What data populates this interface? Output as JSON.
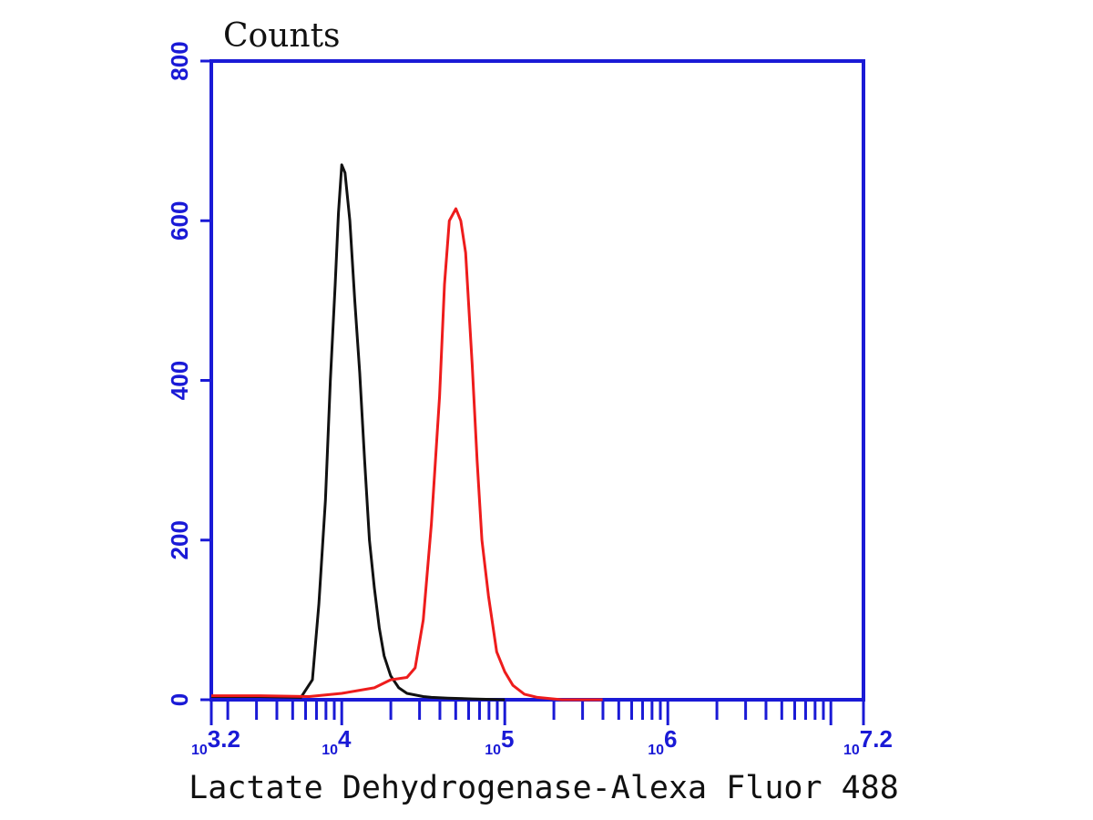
{
  "chart_data": {
    "type": "line",
    "title": "",
    "xlabel": "Lactate Dehydrogenase-Alexa Fluor 488",
    "ylabel": "Counts",
    "xscale": "log",
    "xlim_log10": [
      3.2,
      7.2
    ],
    "ylim": [
      0,
      800
    ],
    "grid": false,
    "y_ticks": [
      0,
      200,
      400,
      600,
      800
    ],
    "y_tick_labels": [
      "0",
      "200",
      "400",
      "600",
      "800"
    ],
    "x_tick_exponents": [
      3.2,
      4,
      5,
      6,
      7.2
    ],
    "x_tick_labels": [
      {
        "base": "10",
        "exp": "3.2"
      },
      {
        "base": "10",
        "exp": "4"
      },
      {
        "base": "10",
        "exp": "5"
      },
      {
        "base": "10",
        "exp": "6"
      },
      {
        "base": "10",
        "exp": "7.2"
      }
    ],
    "colors": {
      "axis": "#1a1ad6",
      "control": "#111111",
      "sample": "#ee1c1c"
    },
    "series": [
      {
        "color": "#111111",
        "x": [
          3.2,
          3.4,
          3.5,
          3.75,
          3.82,
          3.86,
          3.9,
          3.93,
          3.96,
          3.98,
          4.0,
          4.02,
          4.05,
          4.08,
          4.11,
          4.14,
          4.17,
          4.2,
          4.23,
          4.26,
          4.3,
          4.35,
          4.4,
          4.5,
          4.55,
          4.65,
          4.8,
          5.0
        ],
        "y": [
          4,
          4,
          4,
          3,
          25,
          120,
          250,
          400,
          520,
          610,
          670,
          660,
          600,
          500,
          410,
          300,
          200,
          140,
          90,
          55,
          30,
          15,
          8,
          4,
          3,
          2,
          1,
          0
        ]
      },
      {
        "color": "#ee1c1c",
        "x": [
          3.2,
          3.5,
          3.8,
          4.0,
          4.2,
          4.3,
          4.4,
          4.45,
          4.5,
          4.55,
          4.6,
          4.63,
          4.66,
          4.7,
          4.73,
          4.76,
          4.8,
          4.83,
          4.86,
          4.9,
          4.95,
          5.0,
          5.05,
          5.12,
          5.2,
          5.35,
          5.6
        ],
        "y": [
          5,
          5,
          4,
          8,
          15,
          25,
          28,
          40,
          100,
          220,
          380,
          520,
          600,
          615,
          600,
          560,
          420,
          300,
          200,
          130,
          60,
          35,
          18,
          7,
          3,
          0,
          0
        ]
      }
    ]
  }
}
